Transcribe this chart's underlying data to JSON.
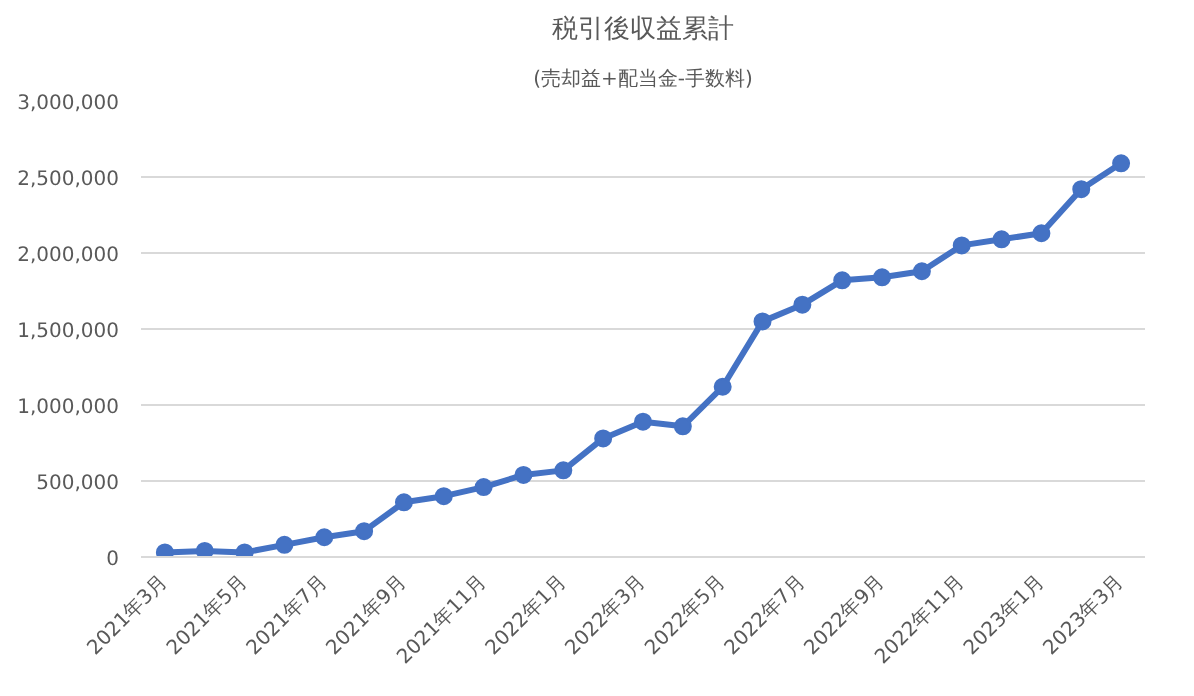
{
  "chart_data": {
    "type": "line",
    "title": "税引後収益累計",
    "subtitle": "(売却益+配当金-手数料)",
    "categories": [
      "2021年3月",
      null,
      "2021年5月",
      null,
      "2021年7月",
      null,
      "2021年9月",
      null,
      "2021年11月",
      null,
      "2022年1月",
      null,
      "2022年3月",
      null,
      "2022年5月",
      null,
      "2022年7月",
      null,
      "2022年9月",
      null,
      "2022年11月",
      null,
      "2023年1月",
      null,
      "2023年3月"
    ],
    "series": [
      {
        "color": "#4472c4",
        "values": [
          30000,
          40000,
          30000,
          80000,
          130000,
          170000,
          360000,
          400000,
          460000,
          540000,
          570000,
          780000,
          890000,
          860000,
          1120000,
          1550000,
          1660000,
          1820000,
          1840000,
          1880000,
          2050000,
          2090000,
          2130000,
          2420000,
          2590000
        ]
      }
    ],
    "ylim": [
      0,
      3000000
    ],
    "yticks": [
      {
        "value": 0,
        "label": "0"
      },
      {
        "value": 500000,
        "label": "500,000"
      },
      {
        "value": 1000000,
        "label": "1,000,000"
      },
      {
        "value": 1500000,
        "label": "1,500,000"
      },
      {
        "value": 2000000,
        "label": "2,000,000"
      },
      {
        "value": 2500000,
        "label": "2,500,000"
      },
      {
        "value": 3000000,
        "label": "3,000,000"
      }
    ],
    "grid": "y",
    "marker": "circle",
    "line_style": "solid"
  }
}
